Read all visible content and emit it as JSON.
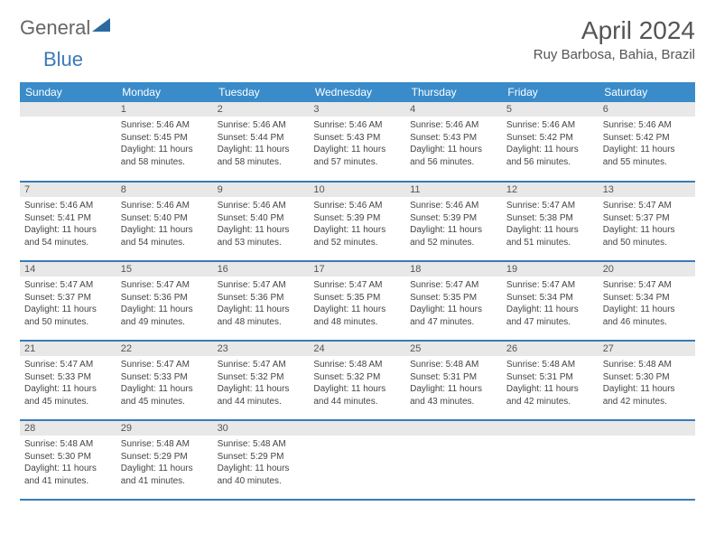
{
  "brand": {
    "part1": "General",
    "part2": "Blue"
  },
  "title": "April 2024",
  "location": "Ruy Barbosa, Bahia, Brazil",
  "colors": {
    "header_bg": "#3a8bc9",
    "header_text": "#ffffff",
    "rule": "#3a7ab8",
    "daynum_bg": "#e8e8e8",
    "body_bg": "#ffffff",
    "text": "#444444",
    "logo_blue": "#3a7ab8",
    "logo_gray": "#666666"
  },
  "weekdays": [
    "Sunday",
    "Monday",
    "Tuesday",
    "Wednesday",
    "Thursday",
    "Friday",
    "Saturday"
  ],
  "weeks": [
    [
      null,
      {
        "n": "1",
        "rise": "5:46 AM",
        "set": "5:45 PM",
        "dl": "11 hours and 58 minutes."
      },
      {
        "n": "2",
        "rise": "5:46 AM",
        "set": "5:44 PM",
        "dl": "11 hours and 58 minutes."
      },
      {
        "n": "3",
        "rise": "5:46 AM",
        "set": "5:43 PM",
        "dl": "11 hours and 57 minutes."
      },
      {
        "n": "4",
        "rise": "5:46 AM",
        "set": "5:43 PM",
        "dl": "11 hours and 56 minutes."
      },
      {
        "n": "5",
        "rise": "5:46 AM",
        "set": "5:42 PM",
        "dl": "11 hours and 56 minutes."
      },
      {
        "n": "6",
        "rise": "5:46 AM",
        "set": "5:42 PM",
        "dl": "11 hours and 55 minutes."
      }
    ],
    [
      {
        "n": "7",
        "rise": "5:46 AM",
        "set": "5:41 PM",
        "dl": "11 hours and 54 minutes."
      },
      {
        "n": "8",
        "rise": "5:46 AM",
        "set": "5:40 PM",
        "dl": "11 hours and 54 minutes."
      },
      {
        "n": "9",
        "rise": "5:46 AM",
        "set": "5:40 PM",
        "dl": "11 hours and 53 minutes."
      },
      {
        "n": "10",
        "rise": "5:46 AM",
        "set": "5:39 PM",
        "dl": "11 hours and 52 minutes."
      },
      {
        "n": "11",
        "rise": "5:46 AM",
        "set": "5:39 PM",
        "dl": "11 hours and 52 minutes."
      },
      {
        "n": "12",
        "rise": "5:47 AM",
        "set": "5:38 PM",
        "dl": "11 hours and 51 minutes."
      },
      {
        "n": "13",
        "rise": "5:47 AM",
        "set": "5:37 PM",
        "dl": "11 hours and 50 minutes."
      }
    ],
    [
      {
        "n": "14",
        "rise": "5:47 AM",
        "set": "5:37 PM",
        "dl": "11 hours and 50 minutes."
      },
      {
        "n": "15",
        "rise": "5:47 AM",
        "set": "5:36 PM",
        "dl": "11 hours and 49 minutes."
      },
      {
        "n": "16",
        "rise": "5:47 AM",
        "set": "5:36 PM",
        "dl": "11 hours and 48 minutes."
      },
      {
        "n": "17",
        "rise": "5:47 AM",
        "set": "5:35 PM",
        "dl": "11 hours and 48 minutes."
      },
      {
        "n": "18",
        "rise": "5:47 AM",
        "set": "5:35 PM",
        "dl": "11 hours and 47 minutes."
      },
      {
        "n": "19",
        "rise": "5:47 AM",
        "set": "5:34 PM",
        "dl": "11 hours and 47 minutes."
      },
      {
        "n": "20",
        "rise": "5:47 AM",
        "set": "5:34 PM",
        "dl": "11 hours and 46 minutes."
      }
    ],
    [
      {
        "n": "21",
        "rise": "5:47 AM",
        "set": "5:33 PM",
        "dl": "11 hours and 45 minutes."
      },
      {
        "n": "22",
        "rise": "5:47 AM",
        "set": "5:33 PM",
        "dl": "11 hours and 45 minutes."
      },
      {
        "n": "23",
        "rise": "5:47 AM",
        "set": "5:32 PM",
        "dl": "11 hours and 44 minutes."
      },
      {
        "n": "24",
        "rise": "5:48 AM",
        "set": "5:32 PM",
        "dl": "11 hours and 44 minutes."
      },
      {
        "n": "25",
        "rise": "5:48 AM",
        "set": "5:31 PM",
        "dl": "11 hours and 43 minutes."
      },
      {
        "n": "26",
        "rise": "5:48 AM",
        "set": "5:31 PM",
        "dl": "11 hours and 42 minutes."
      },
      {
        "n": "27",
        "rise": "5:48 AM",
        "set": "5:30 PM",
        "dl": "11 hours and 42 minutes."
      }
    ],
    [
      {
        "n": "28",
        "rise": "5:48 AM",
        "set": "5:30 PM",
        "dl": "11 hours and 41 minutes."
      },
      {
        "n": "29",
        "rise": "5:48 AM",
        "set": "5:29 PM",
        "dl": "11 hours and 41 minutes."
      },
      {
        "n": "30",
        "rise": "5:48 AM",
        "set": "5:29 PM",
        "dl": "11 hours and 40 minutes."
      },
      null,
      null,
      null,
      null
    ]
  ],
  "labels": {
    "sunrise": "Sunrise:",
    "sunset": "Sunset:",
    "daylight": "Daylight:"
  }
}
